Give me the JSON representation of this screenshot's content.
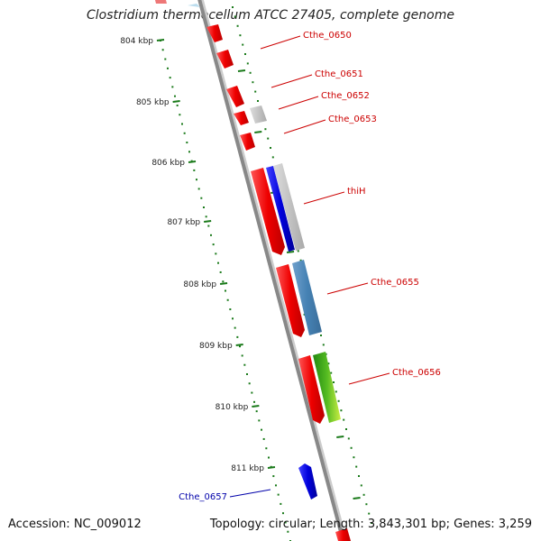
{
  "title": "Clostridium thermocellum ATCC 27405, complete genome",
  "footer": {
    "accession": "Accession: NC_009012",
    "summary": "Topology: circular; Length: 3,843,301 bp; Genes: 3,259"
  },
  "colors": {
    "forward_gene": "#ee0000",
    "reverse_label": "#0000aa",
    "backbone": "#888888",
    "ticks": "#1a7a1a",
    "label_red": "#cc0000",
    "blue_feature": "#0000dd",
    "steelblue_feature": "#4682b4",
    "green_feature": "#33aa11",
    "gray_feature": "#c8c8c8"
  },
  "scale_labels": [
    "804 kbp",
    "805 kbp",
    "806 kbp",
    "807 kbp",
    "808 kbp",
    "809 kbp",
    "810 kbp",
    "811 kbp"
  ],
  "gene_labels": [
    {
      "text": "Cthe_0650",
      "color": "label_red"
    },
    {
      "text": "Cthe_0651",
      "color": "label_red"
    },
    {
      "text": "Cthe_0652",
      "color": "label_red"
    },
    {
      "text": "Cthe_0653",
      "color": "label_red"
    },
    {
      "text": "thiH",
      "color": "label_red"
    },
    {
      "text": "Cthe_0655",
      "color": "label_red"
    },
    {
      "text": "Cthe_0656",
      "color": "label_red"
    },
    {
      "text": "Cthe_0657",
      "color": "reverse_label"
    }
  ]
}
